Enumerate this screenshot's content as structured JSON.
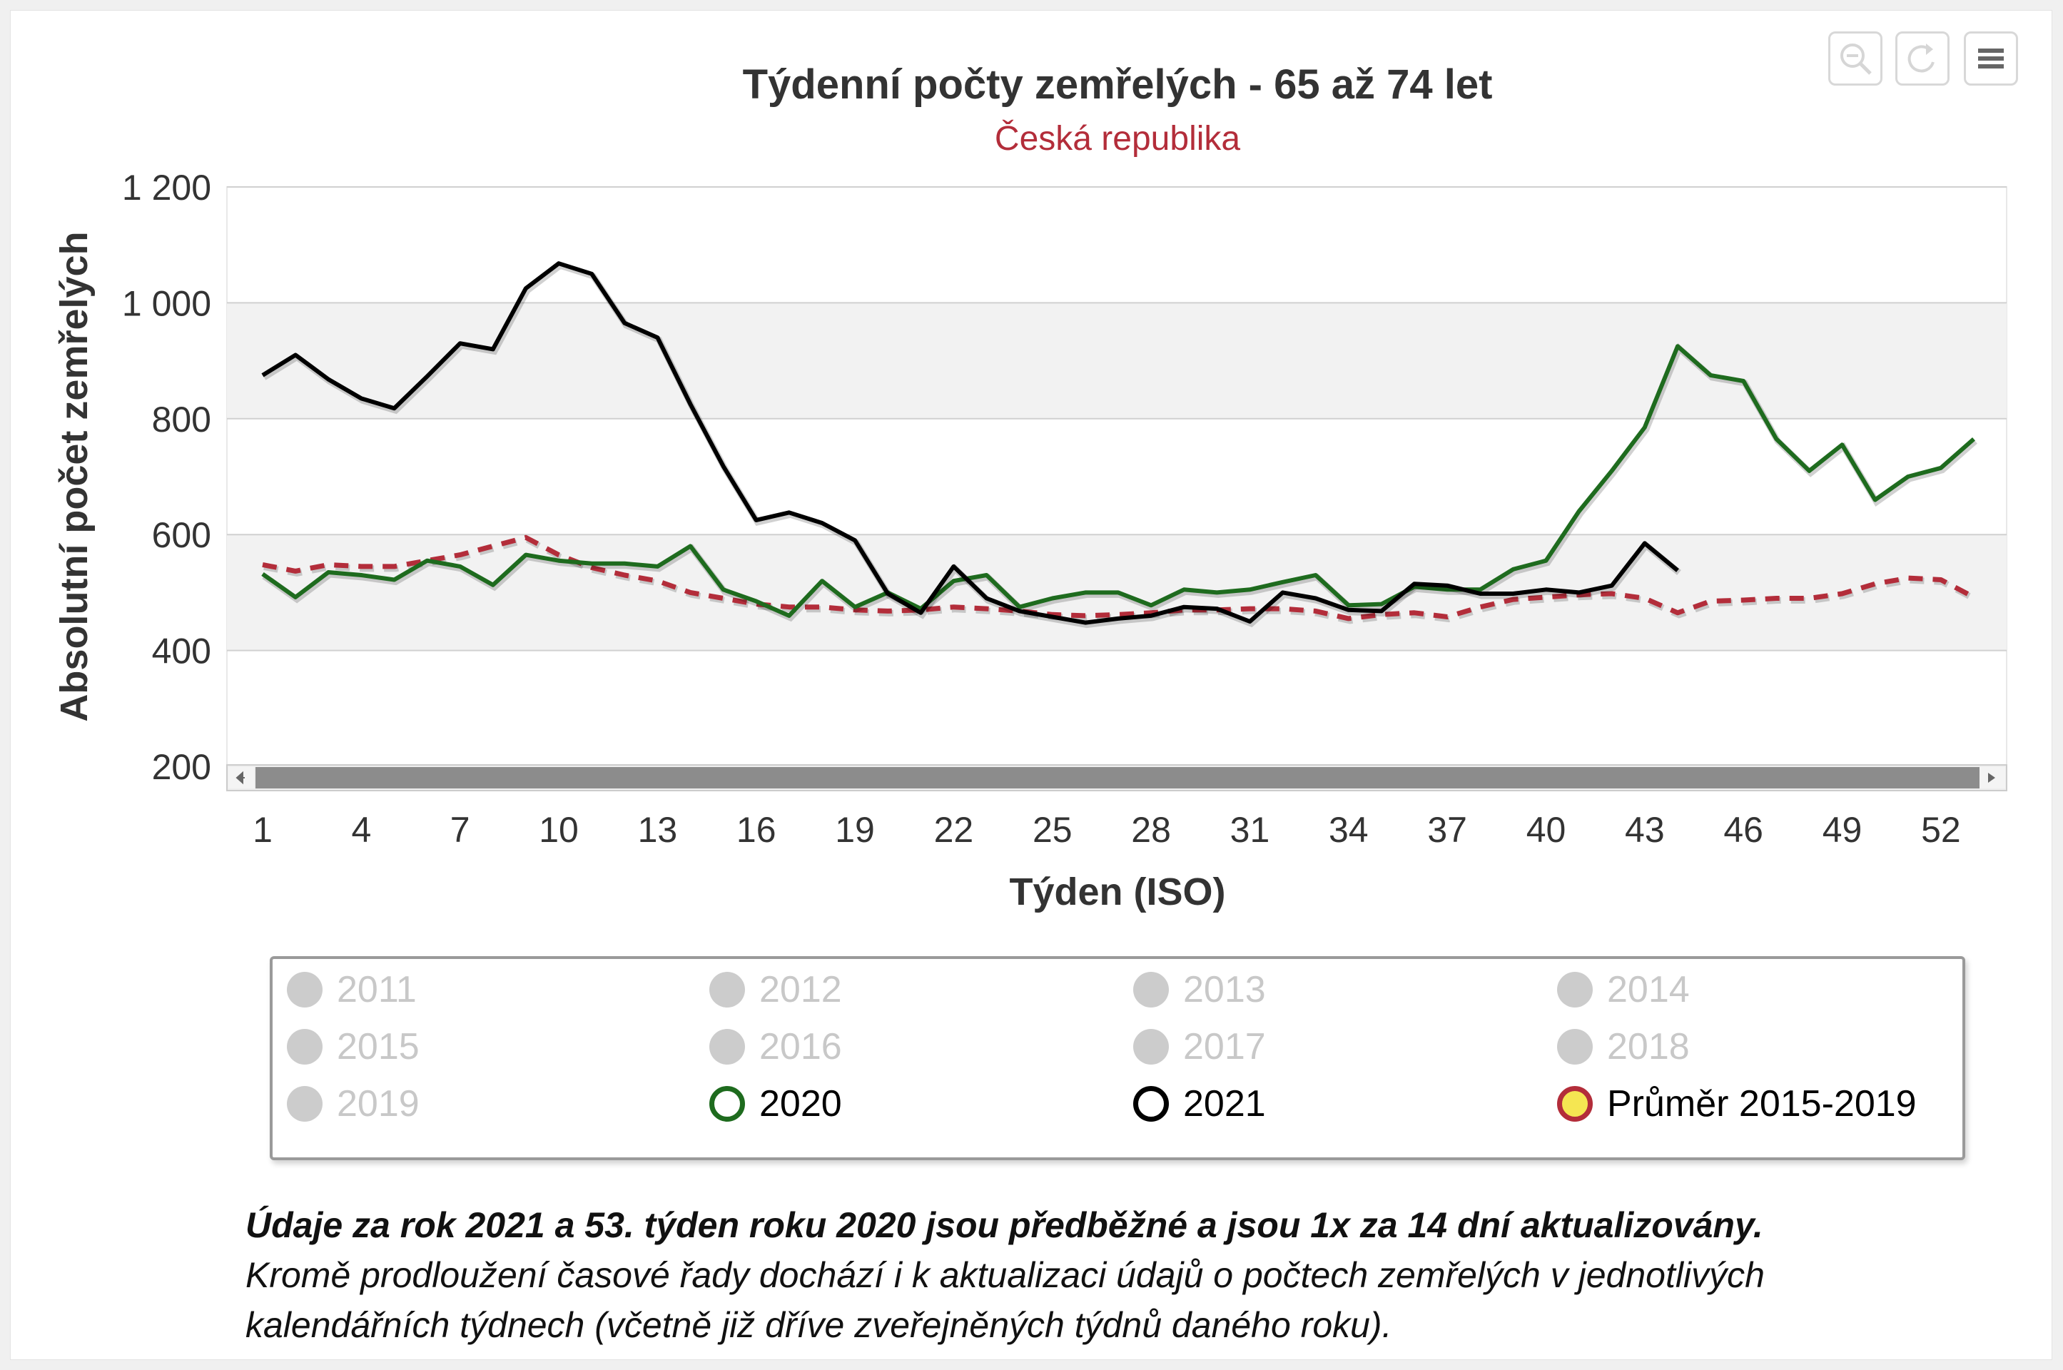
{
  "toolbar": {
    "zoom_icon": "magnifier-minus-icon",
    "reset_icon": "reset-icon",
    "menu_icon": "hamburger-menu-icon"
  },
  "chart_data": {
    "type": "line",
    "title": "Týdenní počty zemřelých - 65 až 74 let",
    "subtitle": "Česká republika",
    "xlabel": "Týden (ISO)",
    "ylabel": "Absolutní počet zemřelých",
    "xlim": [
      1,
      53
    ],
    "ylim": [
      200,
      1200
    ],
    "x_ticks": [
      "1",
      "4",
      "7",
      "10",
      "13",
      "16",
      "19",
      "22",
      "25",
      "28",
      "31",
      "34",
      "37",
      "40",
      "43",
      "46",
      "49",
      "52"
    ],
    "y_ticks": [
      "1 200",
      "1 000",
      "800",
      "600",
      "400",
      "200"
    ],
    "y_tick_values": [
      1200,
      1000,
      800,
      600,
      400,
      200
    ],
    "alternate_bands": true,
    "scrollbar": true,
    "series": [
      {
        "name": "Průměr 2015-2019",
        "color": "#b32d3a",
        "dash": true,
        "x": [
          1,
          2,
          3,
          4,
          5,
          6,
          7,
          8,
          9,
          10,
          11,
          12,
          13,
          14,
          15,
          16,
          17,
          18,
          19,
          20,
          21,
          22,
          23,
          24,
          25,
          26,
          27,
          28,
          29,
          30,
          31,
          32,
          33,
          34,
          35,
          36,
          37,
          38,
          39,
          40,
          41,
          42,
          43,
          44,
          45,
          46,
          47,
          48,
          49,
          50,
          51,
          52,
          53
        ],
        "values": [
          548,
          537,
          548,
          545,
          545,
          555,
          565,
          580,
          595,
          565,
          543,
          530,
          520,
          500,
          490,
          480,
          475,
          475,
          470,
          468,
          470,
          475,
          472,
          468,
          462,
          460,
          462,
          465,
          470,
          470,
          472,
          472,
          468,
          455,
          462,
          465,
          458,
          475,
          488,
          492,
          496,
          498,
          490,
          465,
          485,
          487,
          490,
          490,
          498,
          515,
          525,
          522,
          492
        ]
      },
      {
        "name": "2020",
        "color": "#1e6b1e",
        "dash": false,
        "x": [
          1,
          2,
          3,
          4,
          5,
          6,
          7,
          8,
          9,
          10,
          11,
          12,
          13,
          14,
          15,
          16,
          17,
          18,
          19,
          20,
          21,
          22,
          23,
          24,
          25,
          26,
          27,
          28,
          29,
          30,
          31,
          32,
          33,
          34,
          35,
          36,
          37,
          38,
          39,
          40,
          41,
          42,
          43,
          44,
          45,
          46,
          47,
          48,
          49,
          50,
          51,
          52,
          53
        ],
        "values": [
          532,
          492,
          535,
          530,
          522,
          555,
          545,
          513,
          565,
          555,
          550,
          550,
          545,
          580,
          505,
          485,
          460,
          520,
          475,
          500,
          472,
          520,
          530,
          475,
          490,
          500,
          500,
          478,
          505,
          500,
          505,
          518,
          530,
          478,
          480,
          510,
          505,
          505,
          540,
          555,
          640,
          710,
          785,
          925,
          875,
          865,
          765,
          710,
          755,
          660,
          700,
          715,
          765
        ]
      },
      {
        "name": "2021",
        "color": "#000000",
        "dash": false,
        "x": [
          1,
          2,
          3,
          4,
          5,
          6,
          7,
          8,
          9,
          10,
          11,
          12,
          13,
          14,
          15,
          16,
          17,
          18,
          19,
          20,
          21,
          22,
          23,
          24,
          25,
          26,
          27,
          28,
          29,
          30,
          31,
          32,
          33,
          34,
          35,
          36,
          37,
          38,
          39,
          40,
          41,
          42,
          43,
          44
        ],
        "values": [
          875,
          910,
          868,
          835,
          818,
          873,
          930,
          920,
          1025,
          1068,
          1050,
          965,
          940,
          825,
          718,
          625,
          638,
          620,
          590,
          498,
          465,
          545,
          490,
          468,
          458,
          448,
          455,
          460,
          475,
          472,
          450,
          500,
          490,
          470,
          468,
          515,
          512,
          498,
          498,
          505,
          500,
          512,
          585,
          538
        ]
      }
    ],
    "legend": {
      "placement": "bottom",
      "items": [
        {
          "label": "2011",
          "visible": false
        },
        {
          "label": "2012",
          "visible": false
        },
        {
          "label": "2013",
          "visible": false
        },
        {
          "label": "2014",
          "visible": false
        },
        {
          "label": "2015",
          "visible": false
        },
        {
          "label": "2016",
          "visible": false
        },
        {
          "label": "2017",
          "visible": false
        },
        {
          "label": "2018",
          "visible": false
        },
        {
          "label": "2019",
          "visible": false
        },
        {
          "label": "2020",
          "visible": true,
          "marker_border": "#1e6b1e",
          "marker_fill": "#ffffff"
        },
        {
          "label": "2021",
          "visible": true,
          "marker_border": "#000000",
          "marker_fill": "#ffffff"
        },
        {
          "label": "Průměr 2015-2019",
          "visible": true,
          "marker_border": "#b32d3a",
          "marker_fill": "#f5e652"
        }
      ]
    }
  },
  "notes": {
    "bold": "Údaje za rok 2021 a 53. týden roku 2020 jsou předběžné a jsou 1x za 14 dní aktualizovány.",
    "line2": "Kromě prodloužení časové řady dochází i k aktualizaci údajů o počtech zemřelých v jednotlivých",
    "line3": "kalendářních týdnech (včetně již dříve zveřejněných týdnů daného roku)."
  }
}
